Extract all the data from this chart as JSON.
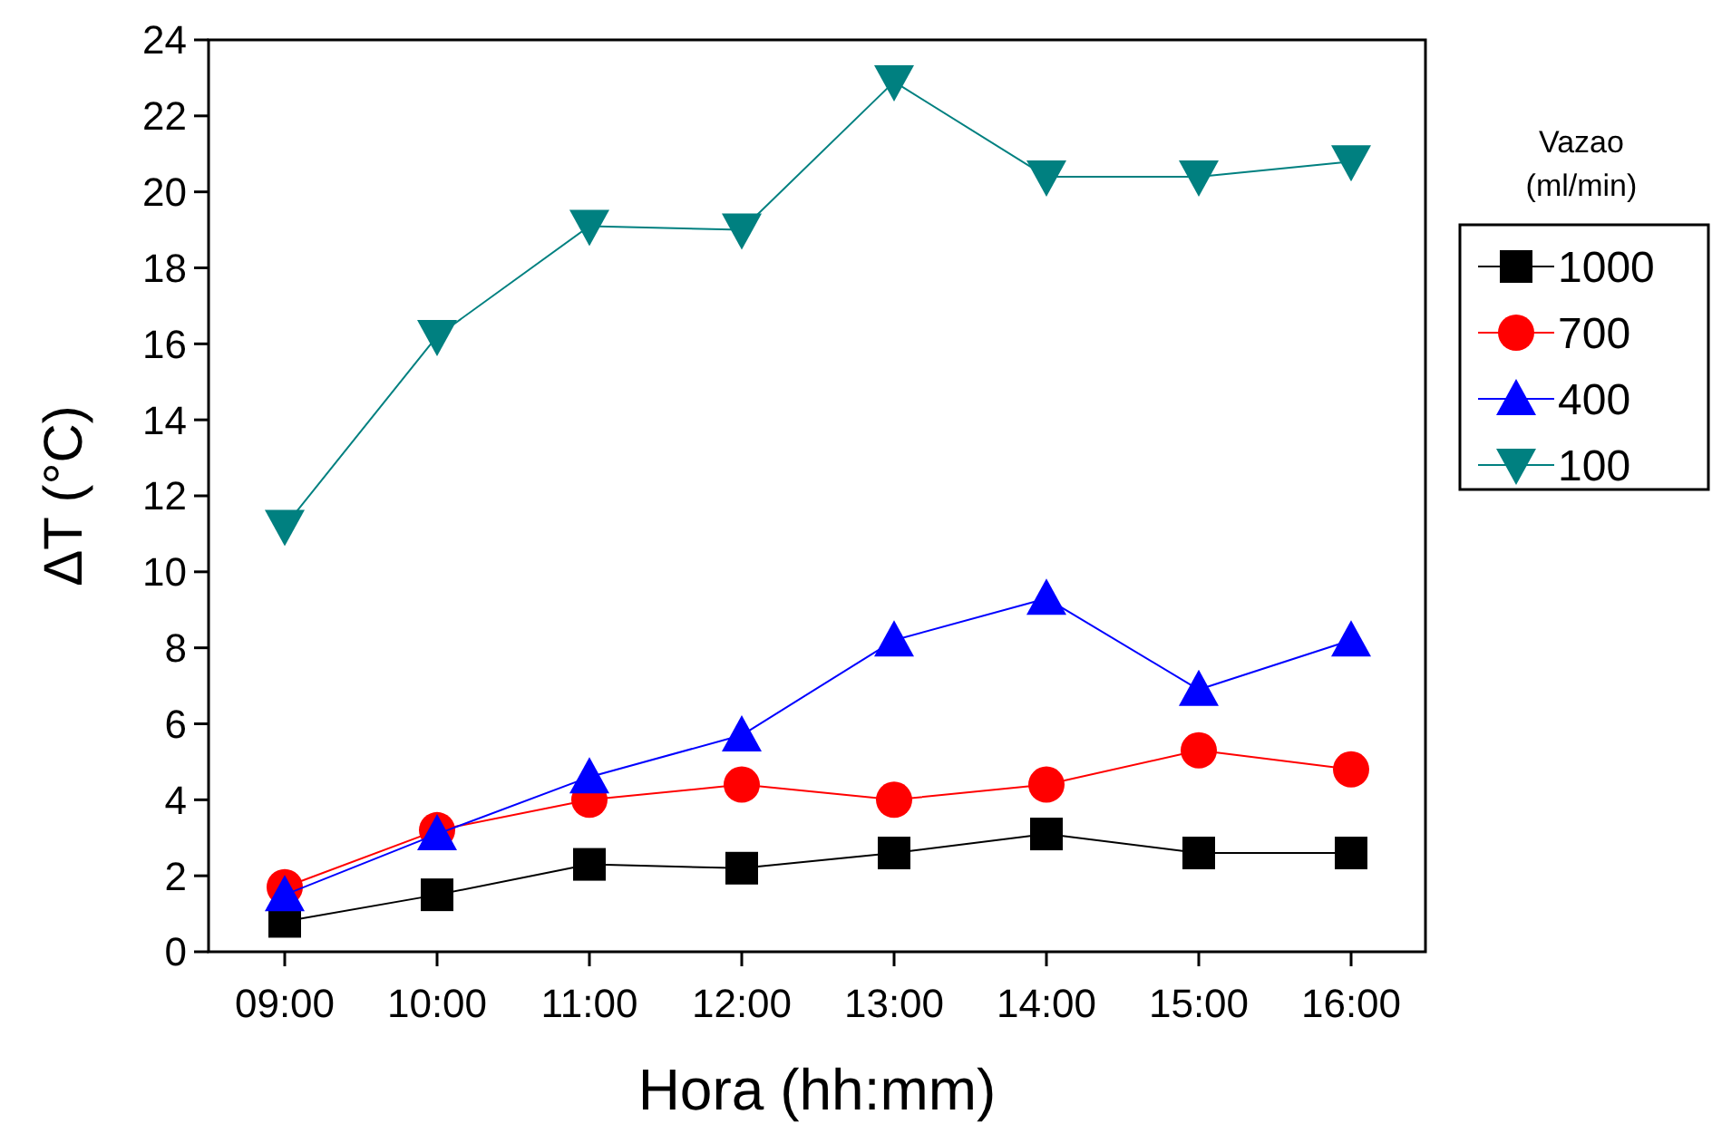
{
  "chart_data": {
    "type": "line",
    "xlabel": "Hora (hh:mm)",
    "ylabel": "ΔT (°C)",
    "legend_title": "Vazao (ml/min)",
    "legend": "right",
    "categories": [
      "09:00",
      "10:00",
      "11:00",
      "12:00",
      "13:00",
      "14:00",
      "15:00",
      "16:00"
    ],
    "ylim": [
      0,
      24
    ],
    "yticks": [
      0,
      2,
      4,
      6,
      8,
      10,
      12,
      14,
      16,
      18,
      20,
      22,
      24
    ],
    "grid": false,
    "series": [
      {
        "name": "1000",
        "color": "#000000",
        "marker": "square",
        "values": [
          0.8,
          1.5,
          2.3,
          2.2,
          2.6,
          3.1,
          2.6,
          2.6
        ]
      },
      {
        "name": "700",
        "color": "#ff0000",
        "marker": "circle",
        "values": [
          1.7,
          3.2,
          4.0,
          4.4,
          4.0,
          4.4,
          5.3,
          4.8
        ]
      },
      {
        "name": "400",
        "color": "#0000ff",
        "marker": "triangle",
        "values": [
          1.5,
          3.1,
          4.6,
          5.7,
          8.2,
          9.3,
          6.9,
          8.2
        ]
      },
      {
        "name": "100",
        "color": "#008080",
        "marker": "triangle-down",
        "values": [
          11.2,
          16.2,
          19.1,
          19.0,
          22.9,
          20.4,
          20.4,
          20.8
        ]
      }
    ]
  }
}
